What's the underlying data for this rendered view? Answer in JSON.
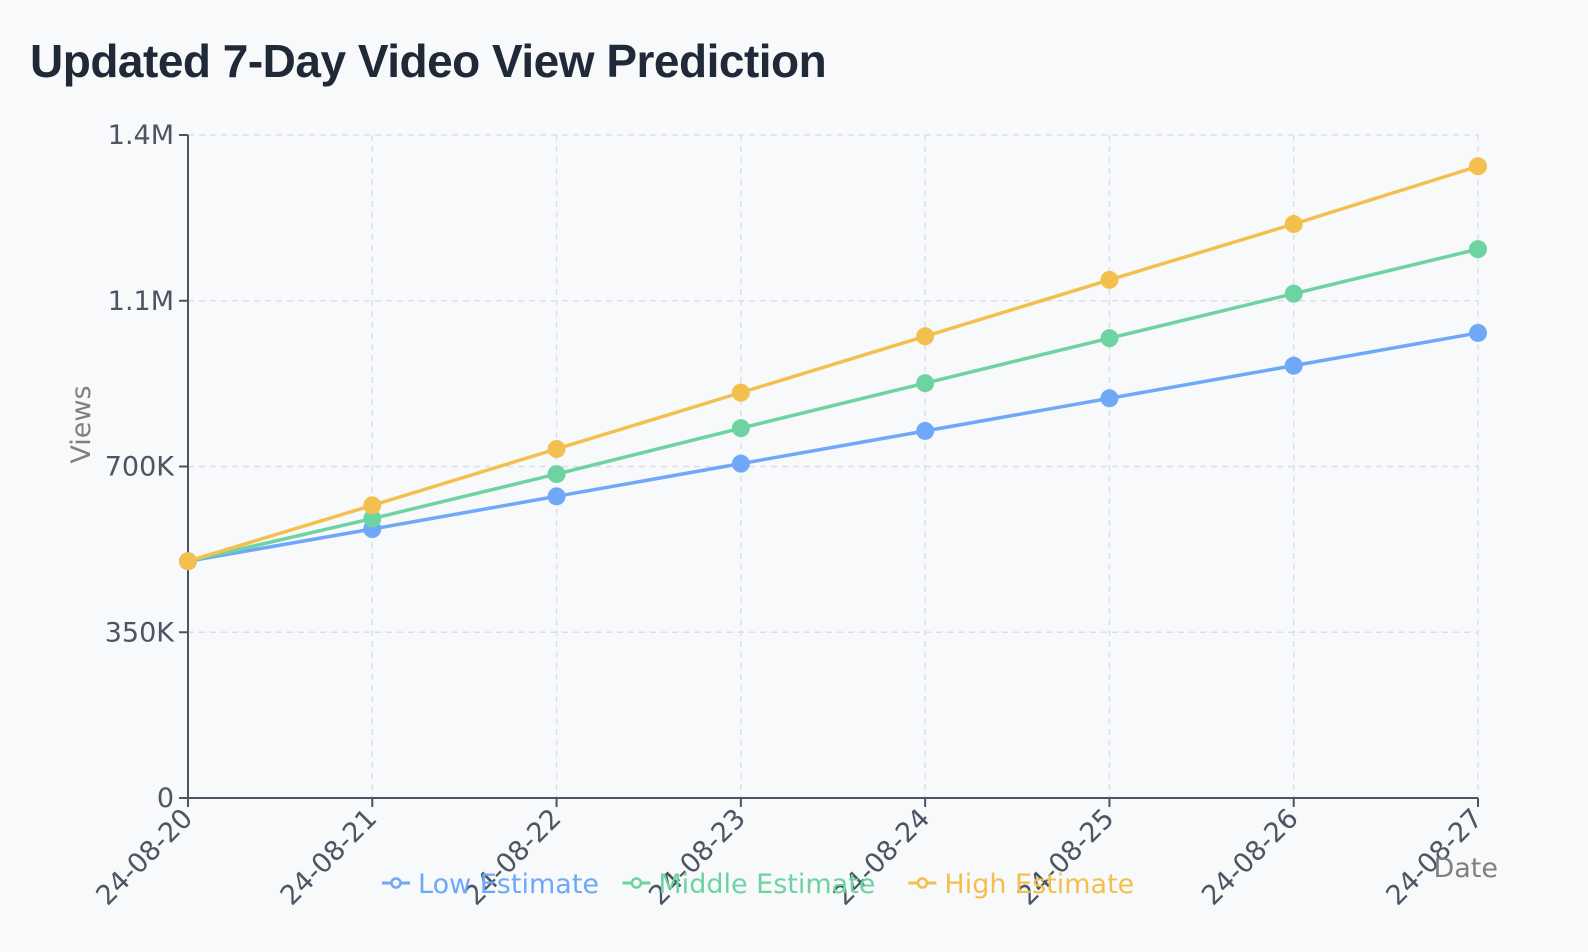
{
  "page": {
    "title": "Updated 7-Day Video View Prediction"
  },
  "chart_data": {
    "type": "line",
    "title": "Updated 7-Day Video View Prediction",
    "xlabel": "Date",
    "ylabel": "Views",
    "x": [
      "2024-08-20",
      "2024-08-21",
      "2024-08-22",
      "2024-08-23",
      "2024-08-24",
      "2024-08-25",
      "2024-08-26",
      "2024-08-27"
    ],
    "x_tick_labels": [
      "24-08-20",
      "24-08-21",
      "24-08-22",
      "24-08-23",
      "24-08-24",
      "24-08-25",
      "24-08-26",
      "24-08-27"
    ],
    "ylim": [
      0,
      1400000
    ],
    "y_ticks": [
      0,
      350000,
      700000,
      1050000,
      1400000
    ],
    "y_tick_labels": [
      "0",
      "350K",
      "700K",
      "1.1M",
      "1.4M"
    ],
    "grid": true,
    "legend_position": "bottom",
    "series": [
      {
        "name": "Low Estimate",
        "color": "#6ea8f7",
        "values": [
          500000,
          568000,
          637000,
          706000,
          775000,
          844000,
          913000,
          982000
        ]
      },
      {
        "name": "Middle Estimate",
        "color": "#6dd3a0",
        "values": [
          500000,
          590000,
          684000,
          781000,
          876000,
          971000,
          1065000,
          1159000
        ]
      },
      {
        "name": "High Estimate",
        "color": "#f3c04f",
        "values": [
          500000,
          618000,
          737000,
          856000,
          975000,
          1094000,
          1212000,
          1334000
        ]
      }
    ]
  }
}
